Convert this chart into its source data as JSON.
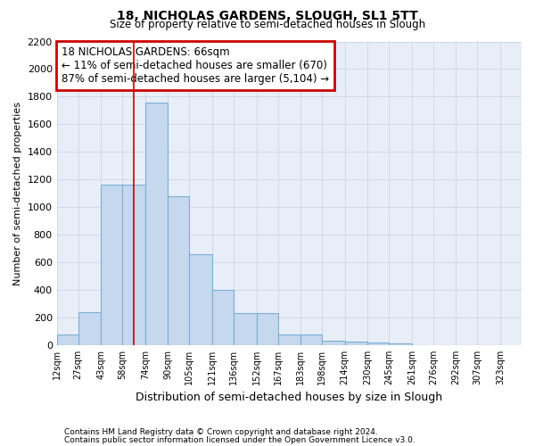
{
  "title1": "18, NICHOLAS GARDENS, SLOUGH, SL1 5TT",
  "title2": "Size of property relative to semi-detached houses in Slough",
  "xlabel": "Distribution of semi-detached houses by size in Slough",
  "ylabel": "Number of semi-detached properties",
  "footnote1": "Contains HM Land Registry data © Crown copyright and database right 2024.",
  "footnote2": "Contains public sector information licensed under the Open Government Licence v3.0.",
  "annotation_line1": "18 NICHOLAS GARDENS: 66sqm",
  "annotation_line2": "← 11% of semi-detached houses are smaller (670)",
  "annotation_line3": "87% of semi-detached houses are larger (5,104) →",
  "bin_edges": [
    12,
    27,
    43,
    58,
    74,
    90,
    105,
    121,
    136,
    152,
    167,
    183,
    198,
    214,
    230,
    245,
    261,
    276,
    292,
    307,
    323
  ],
  "bar_heights": [
    80,
    240,
    1160,
    1160,
    1760,
    1080,
    660,
    400,
    230,
    230,
    80,
    80,
    30,
    25,
    20,
    10,
    0,
    0,
    0,
    0
  ],
  "bar_color": "#c5d8ed",
  "bar_edge_color": "#7bafd4",
  "bar_edge_width": 0.8,
  "vline_color": "#cc0000",
  "vline_x": 66,
  "annotation_box_color": "#cc0000",
  "grid_color": "#d0d8e8",
  "background_color": "#e8eef8",
  "ylim": [
    0,
    2200
  ],
  "yticks": [
    0,
    200,
    400,
    600,
    800,
    1000,
    1200,
    1400,
    1600,
    1800,
    2000,
    2200
  ],
  "tick_labels": [
    "12sqm",
    "27sqm",
    "43sqm",
    "58sqm",
    "74sqm",
    "90sqm",
    "105sqm",
    "121sqm",
    "136sqm",
    "152sqm",
    "167sqm",
    "183sqm",
    "198sqm",
    "214sqm",
    "230sqm",
    "245sqm",
    "261sqm",
    "276sqm",
    "292sqm",
    "307sqm",
    "323sqm"
  ]
}
